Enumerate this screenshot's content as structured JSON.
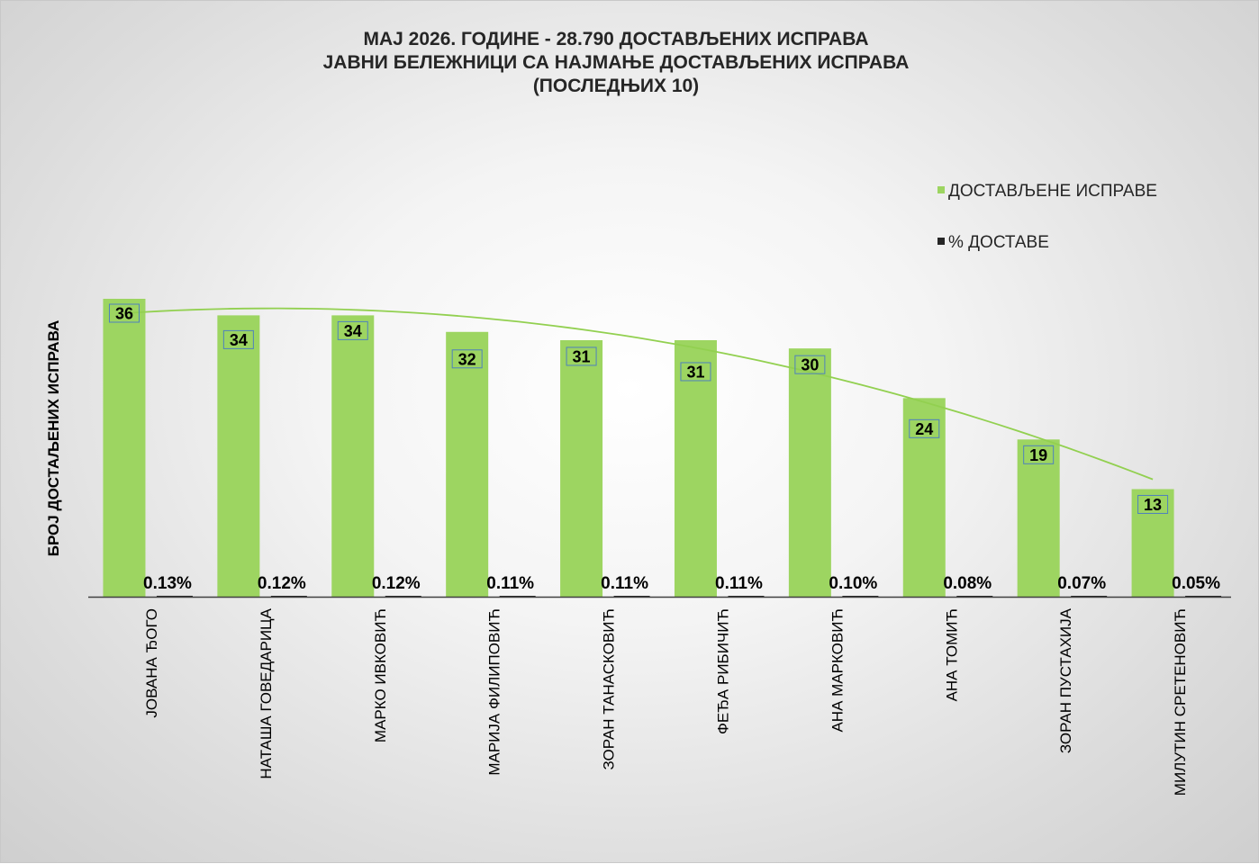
{
  "chart_data": {
    "type": "bar",
    "title_lines": [
      "МАЈ 2026. ГОДИНЕ - 28.790 ДОСТАВЉЕНИХ ИСПРАВА",
      "ЈАВНИ БЕЛЕЖНИЦИ СА НАЈМАЊЕ ДОСТАВЉЕНИХ ИСПРАВА",
      "(ПОСЛЕДЊИХ 10)"
    ],
    "ylabel": "БРОЈ ДОСТАЉЕНИХ ИСПРАВА",
    "xlabel": "",
    "categories": [
      "ЈОВАНА ЂОГО",
      "НАТАША ГОВЕДАРИЦА",
      "МАРКО ИВКОВИЋ",
      "МАРИЈА ФИЛИПОВИЋ",
      "ЗОРАН ТАНАСКОВИЋ",
      "ФЕЂА РИБИЧИЋ",
      "АНА МАРКОВИЋ",
      "АНА ТОМИЋ",
      "ЗОРАН ПУСТАХИЈА",
      "МИЛУТИН СРЕТЕНОВИЋ"
    ],
    "series": [
      {
        "name": "ДОСТАВЉЕНЕ ИСПРАВЕ",
        "color": "#9dd561",
        "values": [
          36,
          34,
          34,
          32,
          31,
          31,
          30,
          24,
          19,
          13
        ],
        "labels": [
          "36",
          "34",
          "34",
          "32",
          "31",
          "31",
          "30",
          "24",
          "19",
          "13"
        ]
      },
      {
        "name": "% ДОСТАВЕ",
        "color": "#262626",
        "values": [
          0.13,
          0.12,
          0.12,
          0.11,
          0.11,
          0.11,
          0.1,
          0.08,
          0.07,
          0.05
        ],
        "labels": [
          "0.13%",
          "0.12%",
          "0.12%",
          "0.11%",
          "0.11%",
          "0.11%",
          "0.10%",
          "0.08%",
          "0.07%",
          "0.05%"
        ]
      }
    ],
    "trendline": {
      "type": "polynomial",
      "color": "#92d050",
      "series": "ДОСТАВЉЕНЕ ИСПРАВЕ"
    },
    "ylim": [
      0,
      36
    ],
    "grid": false,
    "legend_position": "top-right"
  }
}
